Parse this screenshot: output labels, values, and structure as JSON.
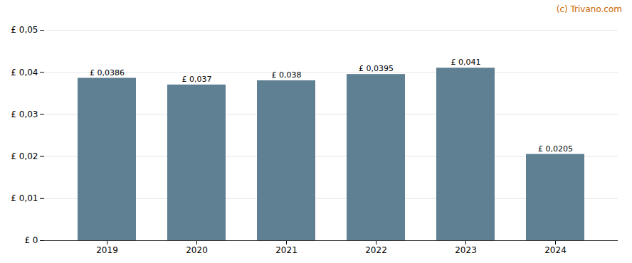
{
  "chart_data": {
    "type": "bar",
    "categories": [
      "2019",
      "2020",
      "2021",
      "2022",
      "2023",
      "2024"
    ],
    "values": [
      0.0386,
      0.037,
      0.038,
      0.0395,
      0.041,
      0.0205
    ],
    "value_labels": [
      "£ 0,0386",
      "£ 0,037",
      "£ 0,038",
      "£ 0,0395",
      "£ 0,041",
      "£ 0,0205"
    ],
    "data_labels": true,
    "color": "#5f7f93",
    "ylim": [
      0,
      0.05
    ],
    "yticks": [
      {
        "value": 0,
        "label": "£ 0"
      },
      {
        "value": 0.01,
        "label": "£ 0,01"
      },
      {
        "value": 0.02,
        "label": "£ 0,02"
      },
      {
        "value": 0.03,
        "label": "£ 0,03"
      },
      {
        "value": 0.04,
        "label": "£ 0,04"
      },
      {
        "value": 0.05,
        "label": "£ 0,05"
      }
    ],
    "grid": true,
    "annotations": [
      "(c) Trivano.com"
    ]
  }
}
